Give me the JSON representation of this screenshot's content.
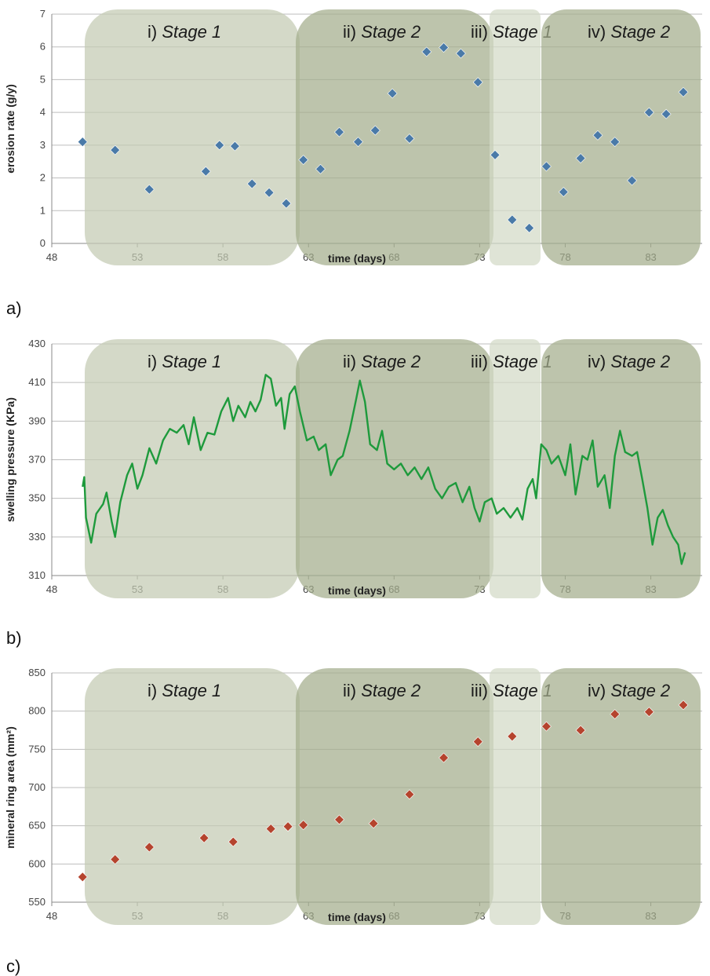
{
  "chart_data": [
    {
      "type": "scatter",
      "panel_label": "a)",
      "xlabel": "time (days)",
      "ylabel": "erosion rate (g/y)",
      "xlim": [
        48,
        86
      ],
      "ylim": [
        0,
        7
      ],
      "xticks": [
        "48",
        "53",
        "58",
        "63",
        "68",
        "73",
        "78",
        "83"
      ],
      "yticks": [
        "0",
        "1",
        "2",
        "3",
        "4",
        "5",
        "6",
        "7"
      ],
      "grid": true,
      "color": "#4a7aa8",
      "marker": "diamond",
      "stages": [
        {
          "numeral": "i)",
          "name": "Stage 1",
          "x": [
            50,
            62
          ]
        },
        {
          "numeral": "ii)",
          "name": "Stage 2",
          "x": [
            62,
            73
          ]
        },
        {
          "numeral": "iii)",
          "name": "Stage 1",
          "x": [
            73,
            76
          ]
        },
        {
          "numeral": "iv)",
          "name": "Stage 2",
          "x": [
            76,
            86
          ]
        }
      ],
      "points": [
        {
          "x": 49.8,
          "y": 3.1
        },
        {
          "x": 51.7,
          "y": 2.85
        },
        {
          "x": 53.7,
          "y": 1.65
        },
        {
          "x": 57.0,
          "y": 2.2
        },
        {
          "x": 57.8,
          "y": 3.0
        },
        {
          "x": 58.7,
          "y": 2.97
        },
        {
          "x": 59.7,
          "y": 1.82
        },
        {
          "x": 60.7,
          "y": 1.55
        },
        {
          "x": 61.7,
          "y": 1.22
        },
        {
          "x": 62.7,
          "y": 2.55
        },
        {
          "x": 63.7,
          "y": 2.27
        },
        {
          "x": 64.8,
          "y": 3.4
        },
        {
          "x": 65.9,
          "y": 3.1
        },
        {
          "x": 66.9,
          "y": 3.45
        },
        {
          "x": 67.9,
          "y": 4.58
        },
        {
          "x": 68.9,
          "y": 3.2
        },
        {
          "x": 69.9,
          "y": 5.85
        },
        {
          "x": 70.9,
          "y": 5.98
        },
        {
          "x": 71.9,
          "y": 5.8
        },
        {
          "x": 72.9,
          "y": 4.92
        },
        {
          "x": 73.9,
          "y": 2.7
        },
        {
          "x": 74.9,
          "y": 0.72
        },
        {
          "x": 75.9,
          "y": 0.47
        },
        {
          "x": 76.9,
          "y": 2.35
        },
        {
          "x": 77.9,
          "y": 1.57
        },
        {
          "x": 78.9,
          "y": 2.6
        },
        {
          "x": 79.9,
          "y": 3.3
        },
        {
          "x": 80.9,
          "y": 3.1
        },
        {
          "x": 81.9,
          "y": 1.92
        },
        {
          "x": 82.9,
          "y": 4.0
        },
        {
          "x": 83.9,
          "y": 3.95
        },
        {
          "x": 84.9,
          "y": 4.62
        }
      ]
    },
    {
      "type": "line",
      "panel_label": "b)",
      "xlabel": "time (days)",
      "ylabel": "swelling pressure (KPa)",
      "xlim": [
        48,
        86
      ],
      "ylim": [
        310,
        430
      ],
      "xticks": [
        "48",
        "53",
        "58",
        "63",
        "68",
        "73",
        "78",
        "83"
      ],
      "yticks": [
        "310",
        "330",
        "350",
        "370",
        "390",
        "410",
        "430"
      ],
      "grid": true,
      "color": "#1e9a3c",
      "stages": [
        {
          "numeral": "i)",
          "name": "Stage 1",
          "x": [
            50,
            62
          ]
        },
        {
          "numeral": "ii)",
          "name": "Stage 2",
          "x": [
            62,
            73
          ]
        },
        {
          "numeral": "iii)",
          "name": "Stage 1",
          "x": [
            73,
            76
          ]
        },
        {
          "numeral": "iv)",
          "name": "Stage 2",
          "x": [
            76,
            86
          ]
        }
      ],
      "points": [
        {
          "x": 49.8,
          "y": 356
        },
        {
          "x": 49.9,
          "y": 361
        },
        {
          "x": 50.0,
          "y": 340
        },
        {
          "x": 50.3,
          "y": 327
        },
        {
          "x": 50.6,
          "y": 342
        },
        {
          "x": 51.0,
          "y": 347
        },
        {
          "x": 51.2,
          "y": 353
        },
        {
          "x": 51.5,
          "y": 338
        },
        {
          "x": 51.7,
          "y": 330
        },
        {
          "x": 52.0,
          "y": 348
        },
        {
          "x": 52.4,
          "y": 362
        },
        {
          "x": 52.7,
          "y": 368
        },
        {
          "x": 53.0,
          "y": 355
        },
        {
          "x": 53.3,
          "y": 362
        },
        {
          "x": 53.7,
          "y": 376
        },
        {
          "x": 54.1,
          "y": 368
        },
        {
          "x": 54.5,
          "y": 380
        },
        {
          "x": 54.9,
          "y": 386
        },
        {
          "x": 55.3,
          "y": 384
        },
        {
          "x": 55.7,
          "y": 388
        },
        {
          "x": 56.0,
          "y": 378
        },
        {
          "x": 56.3,
          "y": 392
        },
        {
          "x": 56.7,
          "y": 375
        },
        {
          "x": 57.1,
          "y": 384
        },
        {
          "x": 57.5,
          "y": 383
        },
        {
          "x": 57.9,
          "y": 395
        },
        {
          "x": 58.3,
          "y": 402
        },
        {
          "x": 58.6,
          "y": 390
        },
        {
          "x": 58.9,
          "y": 398
        },
        {
          "x": 59.3,
          "y": 392
        },
        {
          "x": 59.6,
          "y": 400
        },
        {
          "x": 59.9,
          "y": 395
        },
        {
          "x": 60.2,
          "y": 401
        },
        {
          "x": 60.5,
          "y": 414
        },
        {
          "x": 60.8,
          "y": 412
        },
        {
          "x": 61.1,
          "y": 398
        },
        {
          "x": 61.4,
          "y": 402
        },
        {
          "x": 61.6,
          "y": 386
        },
        {
          "x": 61.9,
          "y": 404
        },
        {
          "x": 62.2,
          "y": 408
        },
        {
          "x": 62.5,
          "y": 395
        },
        {
          "x": 62.9,
          "y": 380
        },
        {
          "x": 63.3,
          "y": 382
        },
        {
          "x": 63.6,
          "y": 375
        },
        {
          "x": 64.0,
          "y": 378
        },
        {
          "x": 64.3,
          "y": 362
        },
        {
          "x": 64.7,
          "y": 370
        },
        {
          "x": 65.0,
          "y": 372
        },
        {
          "x": 65.4,
          "y": 385
        },
        {
          "x": 65.8,
          "y": 402
        },
        {
          "x": 66.0,
          "y": 411
        },
        {
          "x": 66.3,
          "y": 400
        },
        {
          "x": 66.6,
          "y": 378
        },
        {
          "x": 67.0,
          "y": 375
        },
        {
          "x": 67.3,
          "y": 385
        },
        {
          "x": 67.6,
          "y": 368
        },
        {
          "x": 68.0,
          "y": 365
        },
        {
          "x": 68.4,
          "y": 368
        },
        {
          "x": 68.8,
          "y": 362
        },
        {
          "x": 69.2,
          "y": 366
        },
        {
          "x": 69.6,
          "y": 360
        },
        {
          "x": 70.0,
          "y": 366
        },
        {
          "x": 70.4,
          "y": 355
        },
        {
          "x": 70.8,
          "y": 350
        },
        {
          "x": 71.2,
          "y": 356
        },
        {
          "x": 71.6,
          "y": 358
        },
        {
          "x": 72.0,
          "y": 348
        },
        {
          "x": 72.4,
          "y": 356
        },
        {
          "x": 72.7,
          "y": 345
        },
        {
          "x": 73.0,
          "y": 338
        },
        {
          "x": 73.3,
          "y": 348
        },
        {
          "x": 73.7,
          "y": 350
        },
        {
          "x": 74.0,
          "y": 342
        },
        {
          "x": 74.4,
          "y": 345
        },
        {
          "x": 74.8,
          "y": 340
        },
        {
          "x": 75.2,
          "y": 345
        },
        {
          "x": 75.5,
          "y": 339
        },
        {
          "x": 75.8,
          "y": 355
        },
        {
          "x": 76.1,
          "y": 360
        },
        {
          "x": 76.3,
          "y": 350
        },
        {
          "x": 76.6,
          "y": 378
        },
        {
          "x": 76.9,
          "y": 375
        },
        {
          "x": 77.2,
          "y": 368
        },
        {
          "x": 77.6,
          "y": 372
        },
        {
          "x": 78.0,
          "y": 362
        },
        {
          "x": 78.3,
          "y": 378
        },
        {
          "x": 78.6,
          "y": 352
        },
        {
          "x": 79.0,
          "y": 372
        },
        {
          "x": 79.3,
          "y": 370
        },
        {
          "x": 79.6,
          "y": 380
        },
        {
          "x": 79.9,
          "y": 356
        },
        {
          "x": 80.3,
          "y": 362
        },
        {
          "x": 80.6,
          "y": 345
        },
        {
          "x": 80.9,
          "y": 372
        },
        {
          "x": 81.2,
          "y": 385
        },
        {
          "x": 81.5,
          "y": 374
        },
        {
          "x": 81.9,
          "y": 372
        },
        {
          "x": 82.2,
          "y": 374
        },
        {
          "x": 82.5,
          "y": 360
        },
        {
          "x": 82.8,
          "y": 345
        },
        {
          "x": 83.1,
          "y": 326
        },
        {
          "x": 83.4,
          "y": 340
        },
        {
          "x": 83.7,
          "y": 344
        },
        {
          "x": 84.0,
          "y": 336
        },
        {
          "x": 84.3,
          "y": 330
        },
        {
          "x": 84.6,
          "y": 326
        },
        {
          "x": 84.8,
          "y": 316
        },
        {
          "x": 85.0,
          "y": 322
        }
      ]
    },
    {
      "type": "scatter",
      "panel_label": "c)",
      "xlabel": "time (days)",
      "ylabel": "mineral ring area (mm²)",
      "xlim": [
        48,
        86
      ],
      "ylim": [
        550,
        850
      ],
      "xticks": [
        "48",
        "53",
        "58",
        "63",
        "68",
        "73",
        "78",
        "83"
      ],
      "yticks": [
        "550",
        "600",
        "650",
        "700",
        "750",
        "800",
        "850"
      ],
      "grid": true,
      "color": "#b5442e",
      "marker": "diamond",
      "stages": [
        {
          "numeral": "i)",
          "name": "Stage 1",
          "x": [
            50,
            62
          ]
        },
        {
          "numeral": "ii)",
          "name": "Stage 2",
          "x": [
            62,
            73
          ]
        },
        {
          "numeral": "iii)",
          "name": "Stage 1",
          "x": [
            73,
            76
          ]
        },
        {
          "numeral": "iv)",
          "name": "Stage 2",
          "x": [
            76,
            86
          ]
        }
      ],
      "points": [
        {
          "x": 49.8,
          "y": 583
        },
        {
          "x": 51.7,
          "y": 606
        },
        {
          "x": 53.7,
          "y": 622
        },
        {
          "x": 56.9,
          "y": 634
        },
        {
          "x": 58.6,
          "y": 629
        },
        {
          "x": 60.8,
          "y": 646
        },
        {
          "x": 61.8,
          "y": 649
        },
        {
          "x": 62.7,
          "y": 651
        },
        {
          "x": 64.8,
          "y": 658
        },
        {
          "x": 66.8,
          "y": 653
        },
        {
          "x": 68.9,
          "y": 691
        },
        {
          "x": 70.9,
          "y": 739
        },
        {
          "x": 72.9,
          "y": 760
        },
        {
          "x": 74.9,
          "y": 767
        },
        {
          "x": 76.9,
          "y": 780
        },
        {
          "x": 78.9,
          "y": 775
        },
        {
          "x": 80.9,
          "y": 796
        },
        {
          "x": 82.9,
          "y": 799
        },
        {
          "x": 84.9,
          "y": 808
        }
      ]
    }
  ]
}
